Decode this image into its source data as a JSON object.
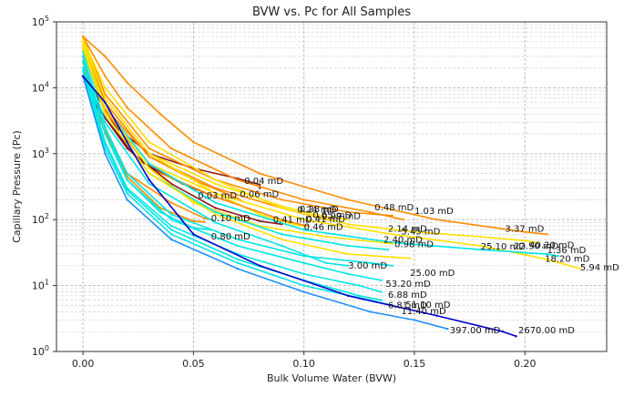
{
  "chart_data": {
    "type": "line",
    "title": "BVW vs. Pc for All Samples",
    "xlabel": "Bulk Volume Water (BVW)",
    "ylabel": "Capillary Pressure (Pc)",
    "xlim": [
      -0.012,
      0.237
    ],
    "ylim": [
      1,
      100000
    ],
    "yscale": "log",
    "grid": true,
    "x_ticks": [
      0.0,
      0.05,
      0.1,
      0.15,
      0.2
    ],
    "x_tick_labels": [
      "0.00",
      "0.05",
      "0.10",
      "0.15",
      "0.20"
    ],
    "y_ticks": [
      1,
      10,
      100,
      1000,
      10000,
      100000
    ],
    "y_tick_labels": [
      "10^0",
      "10^1",
      "10^2",
      "10^3",
      "10^4",
      "10^5"
    ],
    "series": [
      {
        "color": "#8b1a1a",
        "x": [
          0.0,
          0.005,
          0.015,
          0.03,
          0.05,
          0.07,
          0.08,
          0.08
        ],
        "y": [
          15000,
          9000,
          2500,
          1000,
          600,
          420,
          340,
          300
        ]
      },
      {
        "color": "#8b1a1a",
        "x": [
          0.0,
          0.01,
          0.025,
          0.045,
          0.06,
          0.068
        ],
        "y": [
          15000,
          3500,
          800,
          350,
          220,
          180
        ]
      },
      {
        "color": "#ff8c00",
        "x": [
          0.0,
          0.01,
          0.03,
          0.05,
          0.07,
          0.072
        ],
        "y": [
          40000,
          5000,
          900,
          400,
          210,
          190
        ]
      },
      {
        "color": "#ff8c00",
        "x": [
          0.0,
          0.008,
          0.02,
          0.04,
          0.055,
          0.058
        ],
        "y": [
          30000,
          3500,
          500,
          180,
          105,
          100
        ]
      },
      {
        "color": "#ff8c00",
        "x": [
          0.0,
          0.008,
          0.02,
          0.035,
          0.05,
          0.055
        ],
        "y": [
          25000,
          3000,
          450,
          150,
          95,
          92
        ]
      },
      {
        "color": "#00e5e5",
        "x": [
          0.0,
          0.01,
          0.02,
          0.035,
          0.05,
          0.058
        ],
        "y": [
          20000,
          2500,
          400,
          130,
          75,
          70
        ]
      },
      {
        "color": "#ff8c00",
        "x": [
          0.0,
          0.01,
          0.03,
          0.06,
          0.09,
          0.11,
          0.115
        ],
        "y": [
          50000,
          6000,
          900,
          300,
          150,
          100,
          95
        ]
      },
      {
        "color": "#ffe000",
        "x": [
          0.0,
          0.01,
          0.03,
          0.06,
          0.08,
          0.095,
          0.1
        ],
        "y": [
          45000,
          5000,
          700,
          250,
          120,
          85,
          80
        ]
      },
      {
        "color": "#ff8c00",
        "x": [
          0.0,
          0.01,
          0.03,
          0.06,
          0.09,
          0.1,
          0.102
        ],
        "y": [
          40000,
          4500,
          600,
          220,
          100,
          82,
          80
        ]
      },
      {
        "color": "#8b1a1a",
        "x": [
          0.0,
          0.005,
          0.02,
          0.04,
          0.06,
          0.08,
          0.09
        ],
        "y": [
          15000,
          6000,
          1200,
          350,
          150,
          95,
          85
        ]
      },
      {
        "color": "#ff8c00",
        "x": [
          0.0,
          0.01,
          0.03,
          0.06,
          0.09,
          0.12,
          0.14
        ],
        "y": [
          60000,
          8000,
          1200,
          400,
          200,
          130,
          115
        ]
      },
      {
        "color": "#ffe000",
        "x": [
          0.0,
          0.01,
          0.03,
          0.06,
          0.09,
          0.11,
          0.12
        ],
        "y": [
          55000,
          7000,
          1000,
          350,
          160,
          110,
          100
        ]
      },
      {
        "color": "#ff8c00",
        "x": [
          0.0,
          0.01,
          0.02,
          0.04,
          0.07,
          0.1,
          0.13,
          0.145
        ],
        "y": [
          60000,
          15000,
          5000,
          1200,
          400,
          200,
          130,
          100
        ]
      },
      {
        "color": "#ff8c00",
        "x": [
          0.0,
          0.01,
          0.02,
          0.035,
          0.05,
          0.08,
          0.12,
          0.16,
          0.2,
          0.21
        ],
        "y": [
          60000,
          30000,
          12000,
          4000,
          1500,
          500,
          200,
          100,
          65,
          60
        ]
      },
      {
        "color": "#ffe000",
        "x": [
          0.0,
          0.01,
          0.03,
          0.06,
          0.09,
          0.12,
          0.15,
          0.18,
          0.2,
          0.205
        ],
        "y": [
          55000,
          10000,
          1500,
          400,
          150,
          85,
          65,
          55,
          48,
          45
        ]
      },
      {
        "color": "#ffe000",
        "x": [
          0.0,
          0.01,
          0.03,
          0.06,
          0.1,
          0.14,
          0.18,
          0.21,
          0.225
        ],
        "y": [
          50000,
          7000,
          1000,
          250,
          100,
          60,
          40,
          25,
          18
        ]
      },
      {
        "color": "#00e5e5",
        "x": [
          0.0,
          0.01,
          0.03,
          0.06,
          0.1,
          0.14,
          0.18,
          0.21,
          0.215
        ],
        "y": [
          40000,
          5000,
          700,
          180,
          70,
          45,
          35,
          30,
          28
        ]
      },
      {
        "color": "#ffe000",
        "x": [
          0.0,
          0.01,
          0.03,
          0.05,
          0.08,
          0.11,
          0.135,
          0.14
        ],
        "y": [
          45000,
          5000,
          600,
          180,
          80,
          55,
          45,
          43
        ]
      },
      {
        "color": "#00e5e5",
        "x": [
          0.0,
          0.01,
          0.03,
          0.06,
          0.09,
          0.12,
          0.138
        ],
        "y": [
          35000,
          4000,
          500,
          130,
          60,
          40,
          35
        ]
      },
      {
        "color": "#ffe000",
        "x": [
          0.0,
          0.01,
          0.03,
          0.06,
          0.09,
          0.12,
          0.14,
          0.148
        ],
        "y": [
          40000,
          4000,
          500,
          120,
          50,
          30,
          27,
          26
        ]
      },
      {
        "color": "#00e5e5",
        "x": [
          0.0,
          0.01,
          0.03,
          0.06,
          0.09,
          0.11,
          0.12
        ],
        "y": [
          30000,
          3000,
          350,
          90,
          40,
          22,
          20
        ]
      },
      {
        "color": "#00e5e5",
        "x": [
          0.0,
          0.01,
          0.02,
          0.04,
          0.07,
          0.1,
          0.13,
          0.14
        ],
        "y": [
          25000,
          2500,
          500,
          120,
          50,
          28,
          22,
          20
        ]
      },
      {
        "color": "#00e5e5",
        "x": [
          0.0,
          0.01,
          0.02,
          0.04,
          0.07,
          0.1,
          0.12,
          0.135
        ],
        "y": [
          20000,
          2000,
          400,
          100,
          40,
          22,
          15,
          12
        ]
      },
      {
        "color": "#00e5e5",
        "x": [
          0.0,
          0.01,
          0.02,
          0.04,
          0.07,
          0.1,
          0.125,
          0.135
        ],
        "y": [
          20000,
          1500,
          300,
          80,
          30,
          15,
          10,
          8
        ]
      },
      {
        "color": "#00e5e5",
        "x": [
          0.0,
          0.01,
          0.02,
          0.04,
          0.07,
          0.1,
          0.125,
          0.135
        ],
        "y": [
          18000,
          1400,
          280,
          70,
          25,
          12,
          7,
          6
        ]
      },
      {
        "color": "#00e5e5",
        "x": [
          0.0,
          0.01,
          0.02,
          0.04,
          0.07,
          0.1,
          0.13,
          0.14
        ],
        "y": [
          15000,
          1200,
          250,
          60,
          22,
          10,
          6,
          5
        ]
      },
      {
        "color": "#1e90ff",
        "x": [
          0.0,
          0.01,
          0.02,
          0.04,
          0.07,
          0.1,
          0.13,
          0.15,
          0.165
        ],
        "y": [
          15000,
          1000,
          200,
          50,
          18,
          8,
          4,
          3,
          2.2
        ]
      },
      {
        "color": "#0000cd",
        "x": [
          0.0,
          0.01,
          0.02,
          0.03,
          0.05,
          0.08,
          0.12,
          0.16,
          0.19,
          0.196
        ],
        "y": [
          15000,
          6000,
          1500,
          400,
          60,
          20,
          7,
          3.5,
          2,
          1.7
        ]
      }
    ],
    "annotations": [
      {
        "text": "0.04 mD",
        "x": 0.073,
        "y": 350
      },
      {
        "text": "0.03 mD",
        "x": 0.052,
        "y": 210
      },
      {
        "text": "0.06 mD",
        "x": 0.071,
        "y": 220
      },
      {
        "text": "0.10 mD",
        "x": 0.058,
        "y": 95
      },
      {
        "text": "0.80 mD",
        "x": 0.058,
        "y": 50
      },
      {
        "text": "0.41 mD",
        "x": 0.086,
        "y": 90
      },
      {
        "text": "0.41 mD",
        "x": 0.101,
        "y": 92
      },
      {
        "text": "0.28 mD",
        "x": 0.098,
        "y": 130
      },
      {
        "text": "0.24 mD",
        "x": 0.097,
        "y": 128
      },
      {
        "text": "0.46 mD",
        "x": 0.1,
        "y": 70
      },
      {
        "text": "0.65 mD",
        "x": 0.104,
        "y": 106
      },
      {
        "text": "0.99 mD",
        "x": 0.108,
        "y": 103
      },
      {
        "text": "0.48 mD",
        "x": 0.132,
        "y": 138
      },
      {
        "text": "1.03 mD",
        "x": 0.15,
        "y": 122
      },
      {
        "text": "2.40 mD",
        "x": 0.136,
        "y": 45
      },
      {
        "text": "2.14 mD",
        "x": 0.138,
        "y": 65
      },
      {
        "text": "5.45 mD",
        "x": 0.144,
        "y": 60
      },
      {
        "text": "0.98 mD",
        "x": 0.141,
        "y": 38
      },
      {
        "text": "3.37 mD",
        "x": 0.191,
        "y": 65
      },
      {
        "text": "25.10 mD",
        "x": 0.18,
        "y": 35
      },
      {
        "text": "22.50 mD",
        "x": 0.195,
        "y": 36
      },
      {
        "text": "40.20 mD",
        "x": 0.202,
        "y": 37
      },
      {
        "text": "1.36 mD",
        "x": 0.21,
        "y": 31
      },
      {
        "text": "18.20 mD",
        "x": 0.209,
        "y": 23
      },
      {
        "text": "5.94 mD",
        "x": 0.225,
        "y": 17
      },
      {
        "text": "3.00 mD",
        "x": 0.12,
        "y": 18
      },
      {
        "text": "25.00 mD",
        "x": 0.148,
        "y": 14
      },
      {
        "text": "53.20 mD",
        "x": 0.137,
        "y": 9.5
      },
      {
        "text": "6.88 mD",
        "x": 0.138,
        "y": 6.5
      },
      {
        "text": "6.81 mD",
        "x": 0.138,
        "y": 4.5
      },
      {
        "text": "51.10 mD",
        "x": 0.146,
        "y": 4.6
      },
      {
        "text": "11.40 mD",
        "x": 0.144,
        "y": 3.7
      },
      {
        "text": "397.00 mD",
        "x": 0.166,
        "y": 1.9
      },
      {
        "text": "2670.00 mD",
        "x": 0.197,
        "y": 1.9
      }
    ]
  }
}
